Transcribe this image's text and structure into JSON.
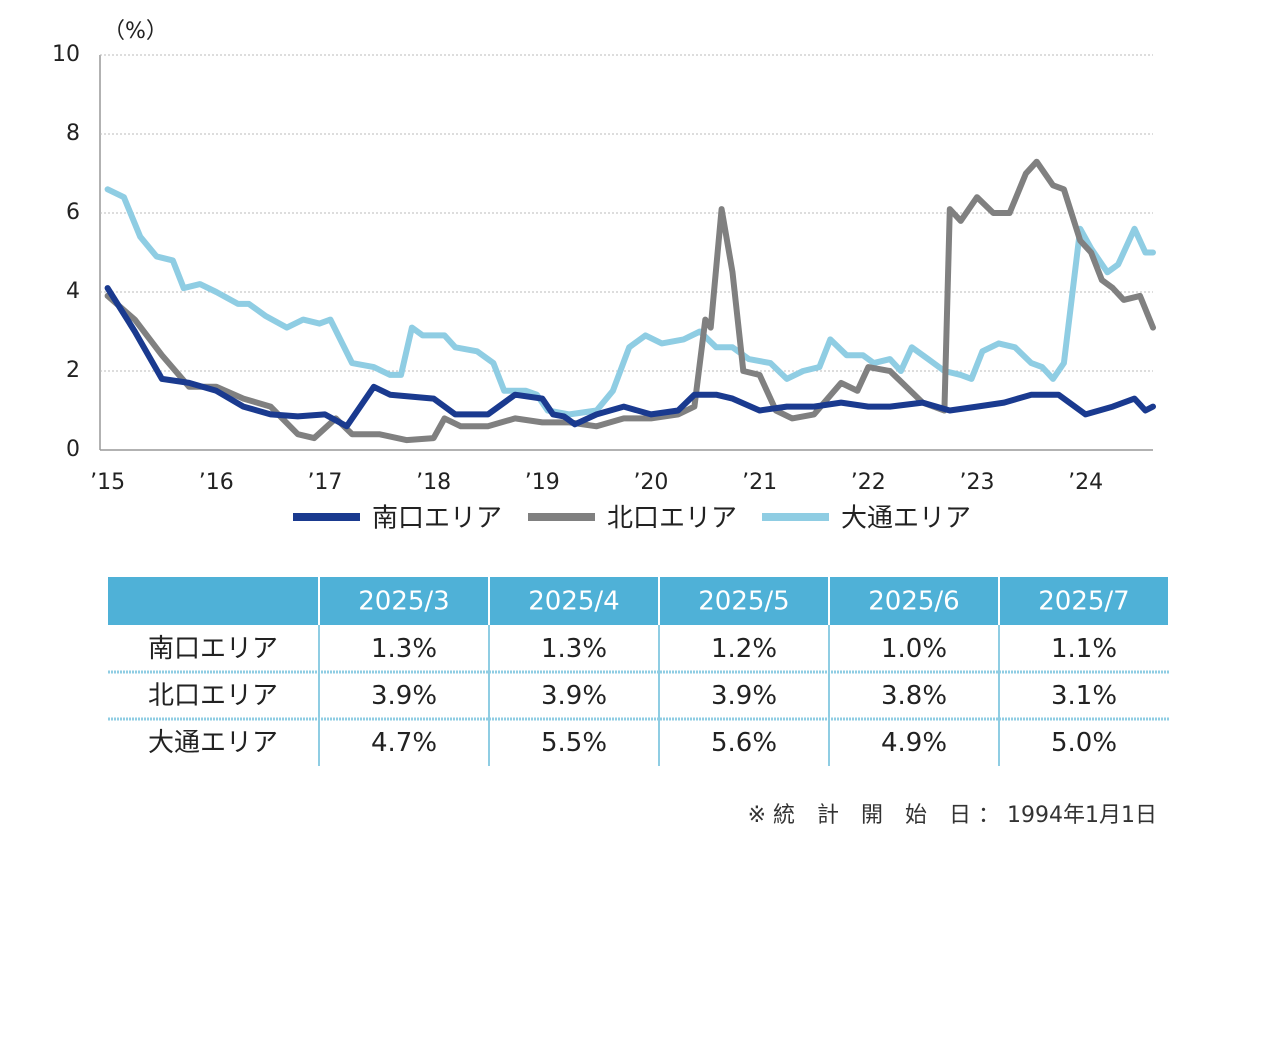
{
  "chart_data": {
    "type": "line",
    "y_label": "（%）",
    "xlim": [
      2014.93,
      2024.62
    ],
    "ylim": [
      0,
      10
    ],
    "yticks": [
      0,
      2,
      4,
      6,
      8,
      10
    ],
    "grid": true,
    "xticks": [
      {
        "value": 2015,
        "label": "’15"
      },
      {
        "value": 2016,
        "label": "’16"
      },
      {
        "value": 2017,
        "label": "’17"
      },
      {
        "value": 2018,
        "label": "’18"
      },
      {
        "value": 2019,
        "label": "’19"
      },
      {
        "value": 2020,
        "label": "’20"
      },
      {
        "value": 2021,
        "label": "’21"
      },
      {
        "value": 2022,
        "label": "’22"
      },
      {
        "value": 2023,
        "label": "’23"
      },
      {
        "value": 2024,
        "label": "’24"
      }
    ],
    "series": [
      {
        "name": "南口エリア",
        "color": "#1a3a8f",
        "x": [
          2015.0,
          2015.25,
          2015.5,
          2015.75,
          2016.0,
          2016.25,
          2016.5,
          2016.75,
          2017.0,
          2017.2,
          2017.45,
          2017.6,
          2018.0,
          2018.2,
          2018.5,
          2018.75,
          2019.0,
          2019.1,
          2019.2,
          2019.3,
          2019.5,
          2019.75,
          2020.0,
          2020.25,
          2020.4,
          2020.6,
          2020.75,
          2021.0,
          2021.25,
          2021.5,
          2021.75,
          2022.0,
          2022.2,
          2022.5,
          2022.75,
          2023.0,
          2023.25,
          2023.5,
          2023.75,
          2024.0,
          2024.25,
          2024.45,
          2024.55,
          2024.62
        ],
        "values": [
          4.1,
          3.0,
          1.8,
          1.7,
          1.5,
          1.1,
          0.9,
          0.85,
          0.9,
          0.6,
          1.6,
          1.4,
          1.3,
          0.9,
          0.9,
          1.4,
          1.3,
          0.9,
          0.85,
          0.65,
          0.9,
          1.1,
          0.9,
          1.0,
          1.4,
          1.4,
          1.3,
          1.0,
          1.1,
          1.1,
          1.2,
          1.1,
          1.1,
          1.2,
          1.0,
          1.1,
          1.2,
          1.4,
          1.4,
          0.9,
          1.1,
          1.3,
          1.0,
          1.1
        ]
      },
      {
        "name": "北口エリア",
        "color": "#808080",
        "x": [
          2015.0,
          2015.25,
          2015.5,
          2015.75,
          2016.0,
          2016.25,
          2016.5,
          2016.75,
          2016.9,
          2017.1,
          2017.25,
          2017.5,
          2017.75,
          2018.0,
          2018.1,
          2018.25,
          2018.5,
          2018.75,
          2019.0,
          2019.25,
          2019.5,
          2019.75,
          2020.0,
          2020.25,
          2020.4,
          2020.5,
          2020.55,
          2020.65,
          2020.75,
          2020.85,
          2021.0,
          2021.15,
          2021.3,
          2021.5,
          2021.75,
          2021.9,
          2022.0,
          2022.2,
          2022.5,
          2022.7,
          2022.75,
          2022.85,
          2023.0,
          2023.15,
          2023.3,
          2023.45,
          2023.55,
          2023.7,
          2023.8,
          2023.95,
          2024.05,
          2024.15,
          2024.25,
          2024.35,
          2024.5,
          2024.62
        ],
        "values": [
          3.9,
          3.3,
          2.4,
          1.6,
          1.6,
          1.3,
          1.1,
          0.4,
          0.3,
          0.8,
          0.4,
          0.4,
          0.25,
          0.3,
          0.8,
          0.6,
          0.6,
          0.8,
          0.7,
          0.7,
          0.6,
          0.8,
          0.8,
          0.9,
          1.1,
          3.3,
          3.1,
          6.1,
          4.5,
          2.0,
          1.9,
          1.0,
          0.8,
          0.9,
          1.7,
          1.5,
          2.1,
          2.0,
          1.2,
          1.0,
          6.1,
          5.8,
          6.4,
          6.0,
          6.0,
          7.0,
          7.3,
          6.7,
          6.6,
          5.3,
          5.0,
          4.3,
          4.1,
          3.8,
          3.9,
          3.1
        ]
      },
      {
        "name": "大通エリア",
        "color": "#8fcde3",
        "x": [
          2015.0,
          2015.15,
          2015.3,
          2015.45,
          2015.6,
          2015.7,
          2015.85,
          2016.0,
          2016.2,
          2016.3,
          2016.45,
          2016.65,
          2016.8,
          2016.95,
          2017.05,
          2017.25,
          2017.45,
          2017.6,
          2017.7,
          2017.8,
          2017.9,
          2018.1,
          2018.2,
          2018.4,
          2018.55,
          2018.65,
          2018.85,
          2018.95,
          2019.05,
          2019.25,
          2019.5,
          2019.65,
          2019.8,
          2019.95,
          2020.1,
          2020.3,
          2020.45,
          2020.6,
          2020.75,
          2020.9,
          2021.1,
          2021.25,
          2021.4,
          2021.55,
          2021.65,
          2021.8,
          2021.95,
          2022.05,
          2022.2,
          2022.3,
          2022.4,
          2022.55,
          2022.7,
          2022.85,
          2022.95,
          2023.05,
          2023.2,
          2023.35,
          2023.5,
          2023.6,
          2023.7,
          2023.8,
          2023.95,
          2024.05,
          2024.2,
          2024.3,
          2024.45,
          2024.55,
          2024.62
        ],
        "values": [
          6.6,
          6.4,
          5.4,
          4.9,
          4.8,
          4.1,
          4.2,
          4.0,
          3.7,
          3.7,
          3.4,
          3.1,
          3.3,
          3.2,
          3.3,
          2.2,
          2.1,
          1.9,
          1.9,
          3.1,
          2.9,
          2.9,
          2.6,
          2.5,
          2.2,
          1.5,
          1.5,
          1.4,
          1.0,
          0.9,
          1.0,
          1.5,
          2.6,
          2.9,
          2.7,
          2.8,
          3.0,
          2.6,
          2.6,
          2.3,
          2.2,
          1.8,
          2.0,
          2.1,
          2.8,
          2.4,
          2.4,
          2.2,
          2.3,
          2.0,
          2.6,
          2.3,
          2.0,
          1.9,
          1.8,
          2.5,
          2.7,
          2.6,
          2.2,
          2.1,
          1.8,
          2.2,
          5.6,
          5.1,
          4.5,
          4.7,
          5.6,
          5.0,
          5.0
        ]
      }
    ]
  },
  "table": {
    "header": [
      "2025/3",
      "2025/4",
      "2025/5",
      "2025/6",
      "2025/7"
    ],
    "rows": [
      {
        "label": "南口エリア",
        "cells": [
          "1.3%",
          "1.3%",
          "1.2%",
          "1.0%",
          "1.1%"
        ]
      },
      {
        "label": "北口エリア",
        "cells": [
          "3.9%",
          "3.9%",
          "3.9%",
          "3.8%",
          "3.1%"
        ]
      },
      {
        "label": "大通エリア",
        "cells": [
          "4.7%",
          "5.5%",
          "5.6%",
          "4.9%",
          "5.0%"
        ]
      }
    ]
  },
  "note": "※ 統　計　開　始　日 ： 1994年1月1日"
}
